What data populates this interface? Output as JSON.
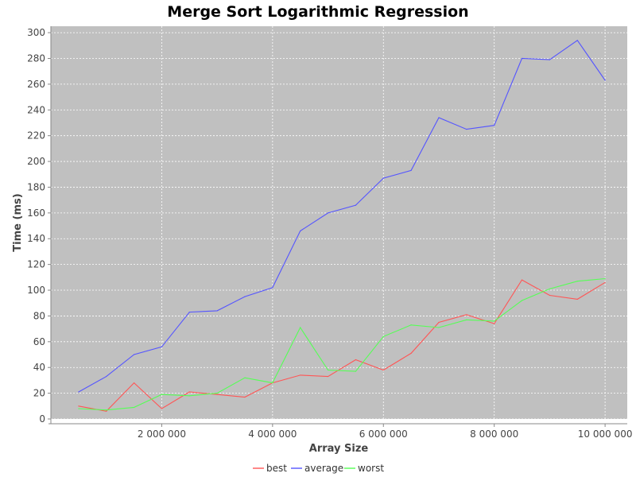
{
  "chart_data": {
    "type": "line",
    "title": "Merge Sort Logarithmic Regression",
    "xlabel": "Array Size",
    "ylabel": "Time (ms)",
    "xlim": [
      0,
      10400000
    ],
    "ylim": [
      0,
      305
    ],
    "x_ticks": [
      2000000,
      4000000,
      6000000,
      8000000,
      10000000
    ],
    "x_tick_labels": [
      "2 000 000",
      "4 000 000",
      "6 000 000",
      "8 000 000",
      "10 000 000"
    ],
    "y_ticks": [
      0,
      20,
      40,
      60,
      80,
      100,
      120,
      140,
      160,
      180,
      200,
      220,
      240,
      260,
      280,
      300
    ],
    "y_tick_labels": [
      "0",
      "20",
      "40",
      "60",
      "80",
      "100",
      "120",
      "140",
      "160",
      "180",
      "200",
      "220",
      "240",
      "260",
      "280",
      "300"
    ],
    "grid": true,
    "legend_position": "bottom",
    "background_color": "#c0c0c0",
    "x": [
      500000,
      1000000,
      1500000,
      2000000,
      2500000,
      3000000,
      3500000,
      4000000,
      4500000,
      5000000,
      5500000,
      6000000,
      6500000,
      7000000,
      7500000,
      8000000,
      8500000,
      9000000,
      9500000,
      10000000
    ],
    "series": [
      {
        "name": "best",
        "color": "#ff5555",
        "values": [
          10,
          6,
          28,
          8,
          21,
          19,
          17,
          28,
          34,
          33,
          46,
          38,
          51,
          75,
          81,
          74,
          108,
          96,
          93,
          106
        ]
      },
      {
        "name": "average",
        "color": "#5555ff",
        "values": [
          21,
          33,
          50,
          56,
          83,
          84,
          95,
          102,
          146,
          160,
          166,
          187,
          193,
          234,
          225,
          228,
          280,
          279,
          294,
          263
        ]
      },
      {
        "name": "worst",
        "color": "#55ff55",
        "values": [
          8,
          7,
          9,
          19,
          18,
          20,
          32,
          28,
          71,
          38,
          37,
          64,
          73,
          71,
          77,
          76,
          92,
          101,
          107,
          109
        ]
      }
    ]
  }
}
